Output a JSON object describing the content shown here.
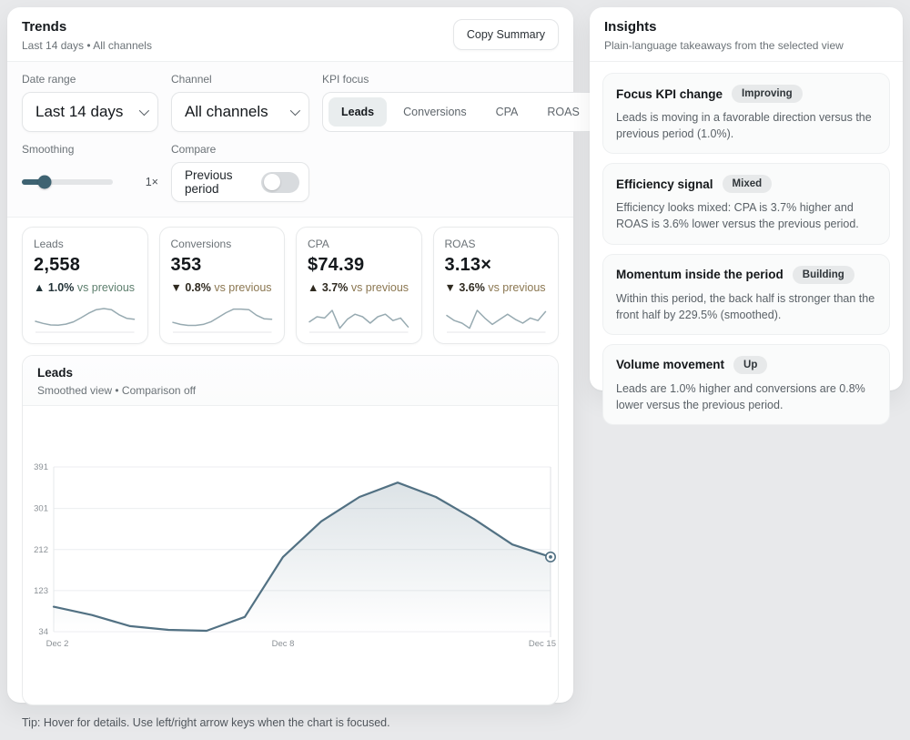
{
  "colors": {
    "accent_teal": "#3e6372",
    "chart_line": "#527183",
    "chart_area_top": "rgba(82,113,131,0.20)",
    "sparkline": "#97aab1",
    "favorable_text": "#5e7f6e",
    "unfavorable_text": "#8b7751",
    "grid": "#eceef0",
    "axis_text": "#8b9196"
  },
  "trends": {
    "title": "Trends",
    "subtitle": "Last 14 days • All channels",
    "copy_button_label": "Copy Summary",
    "filters": {
      "date_range": {
        "label": "Date range",
        "value": "Last 14 days"
      },
      "channel": {
        "label": "Channel",
        "value": "All channels"
      },
      "kpi_focus": {
        "label": "KPI focus",
        "options": [
          "Leads",
          "Conversions",
          "CPA",
          "ROAS"
        ],
        "active": "Leads"
      },
      "smoothing": {
        "label": "Smoothing",
        "value_label": "1×",
        "percent": 25
      },
      "compare": {
        "label": "Compare",
        "toggle_label": "Previous period",
        "enabled": false
      }
    },
    "kpis": [
      {
        "label": "Leads",
        "value": "2,558",
        "delta_text": "▲ 1.0%",
        "delta_suffix": "vs previous",
        "favorable": true,
        "spark": [
          32,
          24,
          18,
          17,
          21,
          30,
          46,
          64,
          78,
          82,
          78,
          58,
          44,
          40
        ]
      },
      {
        "label": "Conversions",
        "value": "353",
        "delta_text": "▼ 0.8%",
        "delta_suffix": "vs previous",
        "favorable": false,
        "spark": [
          28,
          20,
          16,
          16,
          20,
          30,
          48,
          66,
          80,
          80,
          78,
          56,
          42,
          40
        ]
      },
      {
        "label": "CPA",
        "value": "$74.39",
        "delta_text": "▲ 3.7%",
        "delta_suffix": "vs previous",
        "favorable": false,
        "spark": [
          30,
          50,
          45,
          75,
          5,
          40,
          60,
          50,
          25,
          50,
          60,
          35,
          45,
          10
        ]
      },
      {
        "label": "ROAS",
        "value": "3.13×",
        "delta_text": "▼ 3.6%",
        "delta_suffix": "vs previous",
        "favorable": false,
        "spark": [
          55,
          35,
          25,
          5,
          75,
          45,
          20,
          40,
          60,
          40,
          25,
          45,
          35,
          70
        ]
      }
    ],
    "tip": "Tip: Hover for details. Use left/right arrow keys when the chart is focused."
  },
  "chart_data": {
    "type": "area",
    "title": "Leads",
    "subtitle": "Smoothed view • Comparison off",
    "x": [
      "Dec 2",
      "Dec 3",
      "Dec 4",
      "Dec 5",
      "Dec 6",
      "Dec 7",
      "Dec 8",
      "Dec 9",
      "Dec 10",
      "Dec 11",
      "Dec 12",
      "Dec 13",
      "Dec 14",
      "Dec 15"
    ],
    "values": [
      88,
      70,
      46,
      38,
      36,
      66,
      196,
      273,
      326,
      357,
      326,
      278,
      223,
      196
    ],
    "y_ticks": [
      34,
      123,
      212,
      301,
      391
    ],
    "ylim": [
      34,
      391
    ],
    "x_tick_labels": [
      "Dec 2",
      "Dec 8",
      "Dec 15"
    ],
    "grid": true,
    "legend": "none",
    "end_marker": true,
    "focus_line_at_last_x": true
  },
  "insights": {
    "title": "Insights",
    "subtitle": "Plain-language takeaways from the selected view",
    "cards": [
      {
        "title": "Focus KPI change",
        "badge": "Improving",
        "body": "Leads is moving in a favorable direction versus the previous period (1.0%)."
      },
      {
        "title": "Efficiency signal",
        "badge": "Mixed",
        "body": "Efficiency looks mixed: CPA is 3.7% higher and ROAS is 3.6% lower versus the previous period."
      },
      {
        "title": "Momentum inside the period",
        "badge": "Building",
        "body": "Within this period, the back half is stronger than the front half by 229.5% (smoothed)."
      },
      {
        "title": "Volume movement",
        "badge": "Up",
        "body": "Leads are 1.0% higher and conversions are 0.8% lower versus the previous period."
      }
    ]
  }
}
